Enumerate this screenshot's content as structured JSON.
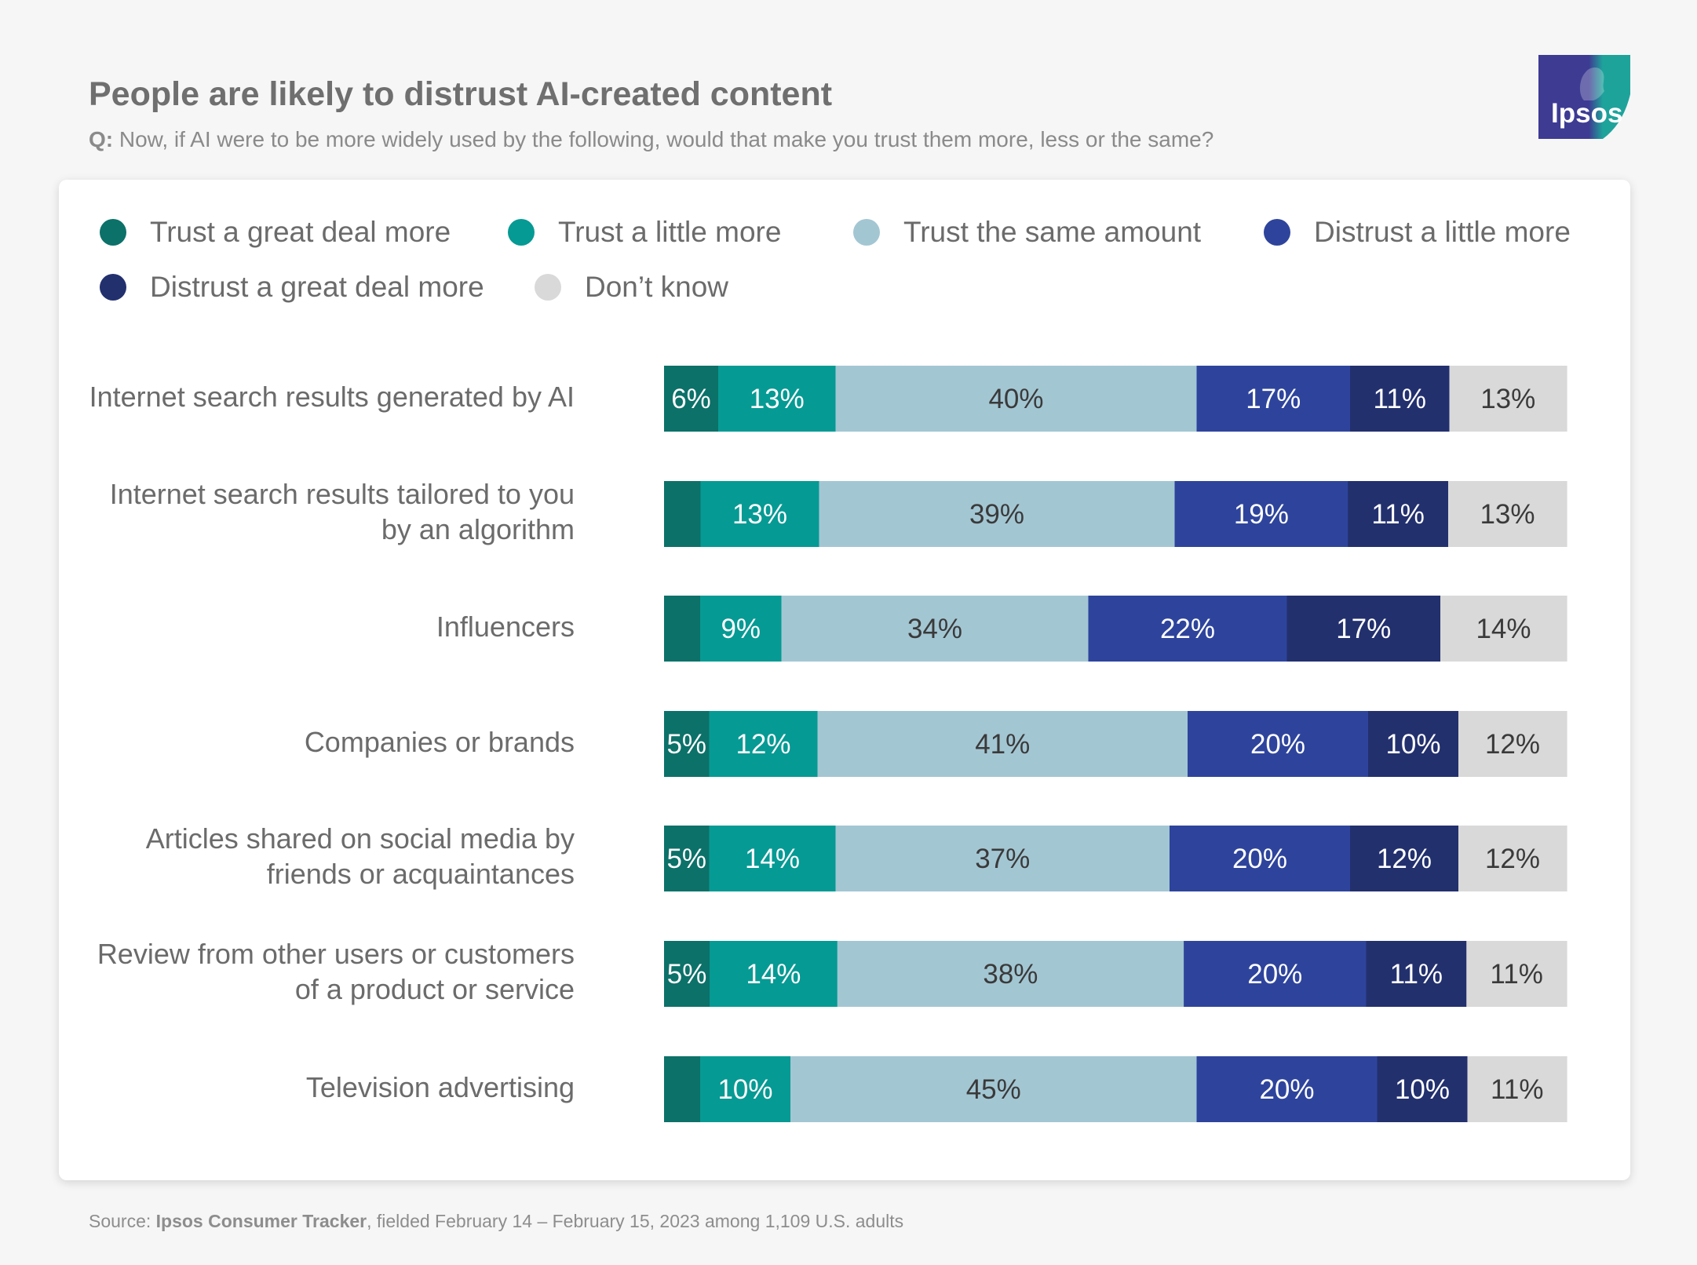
{
  "header": {
    "title": "People are likely to distrust AI-created content",
    "question_prefix": "Q:",
    "question_text": "Now, if AI were to be more widely used by the following, would that make you trust them more, less or the same?"
  },
  "logo": {
    "text": "Ipsos",
    "colors": [
      "#3e3b93",
      "#1ea39b"
    ]
  },
  "legend": [
    {
      "label": "Trust a great deal more",
      "color": "#0c7169"
    },
    {
      "label": "Trust a little more",
      "color": "#069a94"
    },
    {
      "label": "Trust the same amount",
      "color": "#a3c6d3"
    },
    {
      "label": "Distrust a little more",
      "color": "#2e449c"
    },
    {
      "label": "Distrust a great deal more",
      "color": "#23306e"
    },
    {
      "label": "Don’t know",
      "color": "#d9d9d9"
    }
  ],
  "chart_data": {
    "type": "bar",
    "orientation": "horizontal",
    "stacked": true,
    "title": "People are likely to distrust AI-created content",
    "unit": "%",
    "categories": [
      [
        "Internet search results generated by AI"
      ],
      [
        "Internet search results tailored to you",
        "by an algorithm"
      ],
      [
        "Influencers"
      ],
      [
        "Companies or brands"
      ],
      [
        "Articles shared on social media by",
        "friends or acquaintances"
      ],
      [
        "Review from other users or customers",
        "of a product or service"
      ],
      [
        "Television advertising"
      ]
    ],
    "series": [
      {
        "name": "Trust a great deal more",
        "color": "#0c7169",
        "values": [
          6,
          4,
          4,
          5,
          5,
          5,
          4
        ],
        "labels": [
          "6%",
          "",
          "",
          "5%",
          "5%",
          "5%",
          ""
        ]
      },
      {
        "name": "Trust a little more",
        "color": "#069a94",
        "values": [
          13,
          13,
          9,
          12,
          14,
          14,
          10
        ],
        "labels": [
          "13%",
          "13%",
          "9%",
          "12%",
          "14%",
          "14%",
          "10%"
        ]
      },
      {
        "name": "Trust the same amount",
        "color": "#a3c6d3",
        "values": [
          40,
          39,
          34,
          41,
          37,
          38,
          45
        ],
        "labels": [
          "40%",
          "39%",
          "34%",
          "41%",
          "37%",
          "38%",
          "45%"
        ]
      },
      {
        "name": "Distrust a little more",
        "color": "#2e449c",
        "values": [
          17,
          19,
          22,
          20,
          20,
          20,
          20
        ],
        "labels": [
          "17%",
          "19%",
          "22%",
          "20%",
          "20%",
          "20%",
          "20%"
        ]
      },
      {
        "name": "Distrust a great deal more",
        "color": "#23306e",
        "values": [
          11,
          11,
          17,
          10,
          12,
          11,
          10
        ],
        "labels": [
          "11%",
          "11%",
          "17%",
          "10%",
          "12%",
          "11%",
          "10%"
        ]
      },
      {
        "name": "Don’t know",
        "color": "#d9d9d9",
        "values": [
          13,
          13,
          14,
          12,
          12,
          11,
          11
        ],
        "labels": [
          "13%",
          "13%",
          "14%",
          "12%",
          "12%",
          "11%",
          "11%"
        ]
      }
    ],
    "label_colors": [
      "#ffffff",
      "#ffffff",
      "#3a3a3a",
      "#ffffff",
      "#ffffff",
      "#3a3a3a"
    ]
  },
  "source": {
    "prefix": "Source: ",
    "name": "Ipsos Consumer Tracker",
    "suffix": ", fielded February 14 – February 15, 2023 among 1,109 U.S. adults"
  }
}
